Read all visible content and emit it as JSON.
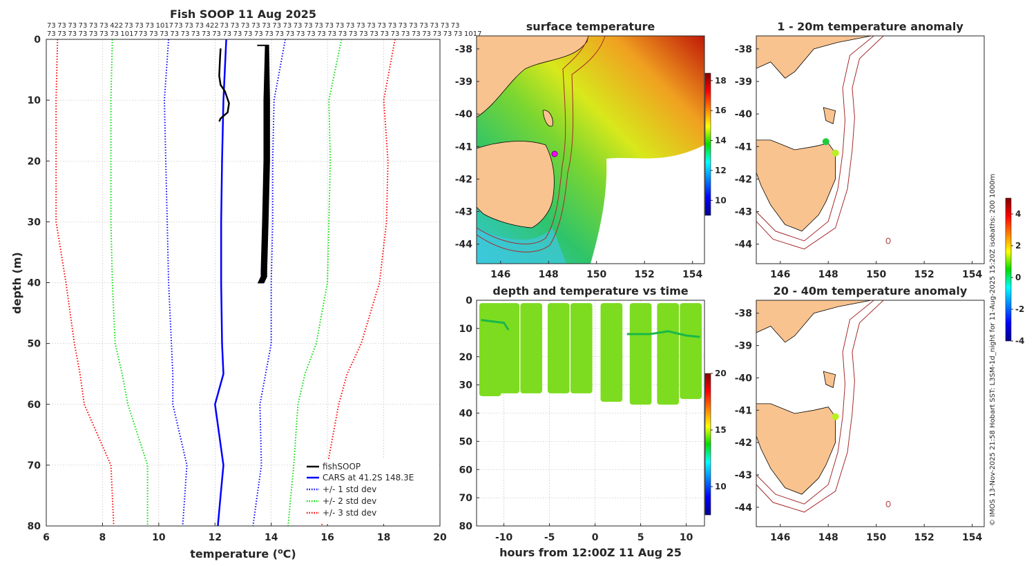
{
  "chart_data": [
    {
      "type": "line",
      "title": "Fish SOOP 11 Aug 2025",
      "xlabel": "temperature (°C)",
      "ylabel": "depth (m)",
      "xlim": [
        6,
        20
      ],
      "ylim": [
        0,
        80
      ],
      "xticks": [
        6,
        8,
        10,
        12,
        14,
        16,
        18,
        20
      ],
      "yticks": [
        0,
        10,
        20,
        30,
        40,
        50,
        60,
        70,
        80
      ],
      "top_labels_row1": [
        "73",
        "73",
        "73",
        "73",
        "73",
        "73",
        "422",
        "73",
        "73",
        "73",
        "1017",
        "73",
        "73",
        "73",
        "422",
        "73",
        "73",
        "73",
        "73",
        "73",
        "73",
        "73",
        "73",
        "73",
        "73",
        "73",
        "73",
        "73",
        "73",
        "73",
        "73",
        "73",
        "73",
        "73",
        "73",
        "73",
        "73",
        "73"
      ],
      "top_labels_row2": [
        "73",
        "73",
        "73",
        "73",
        "73",
        "73",
        "73",
        "1017",
        "73",
        "73",
        "73",
        "73",
        "73",
        "73",
        "73",
        "73",
        "73",
        "73",
        "73",
        "73",
        "73",
        "73",
        "73",
        "73",
        "73",
        "73",
        "73",
        "73",
        "73",
        "73",
        "73",
        "73",
        "73",
        "73",
        "73",
        "73",
        "73",
        "73",
        "73",
        "1017"
      ],
      "series": [
        {
          "name": "fishSOOP",
          "style": "solid",
          "color": "#000000",
          "profiles": [
            {
              "temp": [
                12.2,
                12.18,
                12.15,
                12.2,
                12.35,
                12.5,
                12.45,
                12.2,
                12.15
              ],
              "depth": [
                1.5,
                3,
                6,
                7.5,
                8.5,
                10.5,
                12,
                13,
                13.5
              ]
            },
            {
              "temp": [
                13.6,
                13.9,
                13.85,
                13.85,
                13.8,
                13.75,
                13.75,
                13.65
              ],
              "depth": [
                1,
                1,
                10,
                20,
                30,
                38,
                39,
                40
              ]
            }
          ]
        },
        {
          "name": "CARS at 41.2S 148.3E",
          "style": "solid",
          "color": "#0000ff",
          "temp": [
            12.4,
            12.3,
            12.25,
            12.22,
            12.22,
            12.25,
            12.3,
            12.0,
            12.3,
            12.2,
            12.1
          ],
          "depth": [
            0,
            10,
            20,
            30,
            40,
            50,
            55,
            60,
            70,
            75,
            80
          ]
        },
        {
          "name": "+/- 1 std dev",
          "style": "dotted",
          "color": "#0000ff",
          "lower": {
            "temp": [
              10.35,
              10.2,
              10.25,
              10.3,
              10.35,
              10.45,
              10.5,
              10.5,
              11.0,
              10.85
            ],
            "depth": [
              0,
              10,
              20,
              30,
              40,
              50,
              55,
              60,
              70,
              80
            ]
          },
          "upper": {
            "temp": [
              14.5,
              14.1,
              14.05,
              14.05,
              14.0,
              14.0,
              13.8,
              13.6,
              13.65,
              13.35
            ],
            "depth": [
              0,
              10,
              20,
              30,
              40,
              50,
              55,
              60,
              70,
              80
            ]
          }
        },
        {
          "name": "+/- 2 std dev",
          "style": "dotted",
          "color": "#00dd00",
          "lower": {
            "temp": [
              8.35,
              8.3,
              8.3,
              8.3,
              8.35,
              8.45,
              8.7,
              8.9,
              9.6,
              9.6
            ],
            "depth": [
              0,
              10,
              20,
              30,
              40,
              50,
              55,
              60,
              70,
              80
            ]
          },
          "upper": {
            "temp": [
              16.5,
              16.05,
              16.1,
              16.05,
              16.0,
              15.6,
              15.2,
              14.95,
              14.8,
              14.6
            ],
            "depth": [
              0,
              10,
              20,
              30,
              40,
              50,
              55,
              60,
              70,
              80
            ]
          }
        },
        {
          "name": "+/- 3 std dev",
          "style": "dotted",
          "color": "#ff0000",
          "lower": {
            "temp": [
              6.4,
              6.35,
              6.35,
              6.35,
              6.7,
              7.0,
              7.2,
              7.35,
              8.3,
              8.4
            ],
            "depth": [
              0,
              10,
              20,
              30,
              40,
              50,
              55,
              60,
              70,
              80
            ]
          },
          "upper": {
            "temp": [
              18.4,
              18.0,
              18.15,
              18.1,
              17.85,
              17.2,
              16.7,
              16.4,
              16.0,
              15.8
            ],
            "depth": [
              0,
              10,
              20,
              30,
              40,
              50,
              55,
              60,
              70,
              80
            ]
          }
        }
      ],
      "legend": "bottom-right"
    },
    {
      "type": "heatmap",
      "title": "surface temperature",
      "xlim": [
        145,
        154.5
      ],
      "ylim": [
        -44.6,
        -37.6
      ],
      "xticks": [
        146,
        148,
        150,
        152,
        154
      ],
      "yticks": [
        -38,
        -39,
        -40,
        -41,
        -42,
        -43,
        -44
      ],
      "colorbar": {
        "range": [
          9,
          18.5
        ],
        "ticks": [
          10,
          12,
          14,
          16,
          18
        ]
      }
    },
    {
      "type": "scatter",
      "title": "depth and temperature vs time",
      "xlabel": "hours from 12:00Z 11 Aug 25",
      "xlim": [
        -13,
        12
      ],
      "ylim": [
        0,
        80
      ],
      "xticks": [
        -10,
        -5,
        0,
        5,
        10
      ],
      "yticks": [
        0,
        10,
        20,
        30,
        40,
        50,
        60,
        70,
        80
      ],
      "casts": [
        {
          "t": -11.5,
          "max_depth": 34
        },
        {
          "t": -9.5,
          "max_depth": 33
        },
        {
          "t": -7.0,
          "max_depth": 33
        },
        {
          "t": -4.0,
          "max_depth": 33
        },
        {
          "t": -1.5,
          "max_depth": 33
        },
        {
          "t": 1.8,
          "max_depth": 36
        },
        {
          "t": 5.0,
          "max_depth": 37
        },
        {
          "t": 8.0,
          "max_depth": 37
        },
        {
          "t": 10.5,
          "max_depth": 35
        }
      ],
      "colorbar": {
        "range": [
          7.5,
          20
        ],
        "ticks": [
          10,
          15,
          20
        ]
      }
    },
    {
      "type": "scatter",
      "title": "1 - 20m temperature anomaly",
      "xlim": [
        145,
        154.5
      ],
      "ylim": [
        -44.6,
        -37.6
      ],
      "xticks": [
        146,
        148,
        150,
        152,
        154
      ],
      "yticks": [
        -38,
        -39,
        -40,
        -41,
        -42,
        -43,
        -44
      ],
      "points": [
        {
          "lon": 147.9,
          "lat": -40.85,
          "anomaly": 0.2
        },
        {
          "lon": 148.3,
          "lat": -41.2,
          "anomaly": 1.6
        }
      ]
    },
    {
      "type": "scatter",
      "title": "20 - 40m temperature anomaly",
      "xlim": [
        145,
        154.5
      ],
      "ylim": [
        -44.6,
        -37.6
      ],
      "xticks": [
        146,
        148,
        150,
        152,
        154
      ],
      "yticks": [
        -38,
        -39,
        -40,
        -41,
        -42,
        -43,
        -44
      ],
      "points": [
        {
          "lon": 148.3,
          "lat": -41.2,
          "anomaly": 1.8
        }
      ],
      "colorbar": {
        "range": [
          -4,
          5
        ],
        "ticks": [
          -4,
          -2,
          0,
          2,
          4
        ]
      }
    }
  ],
  "credit": "© IMOS 13-Nov-2025 21:58 Hobart SST: L3SM-1d_night for 11-Aug-2025 15:20Z isobaths: 200  1000m"
}
